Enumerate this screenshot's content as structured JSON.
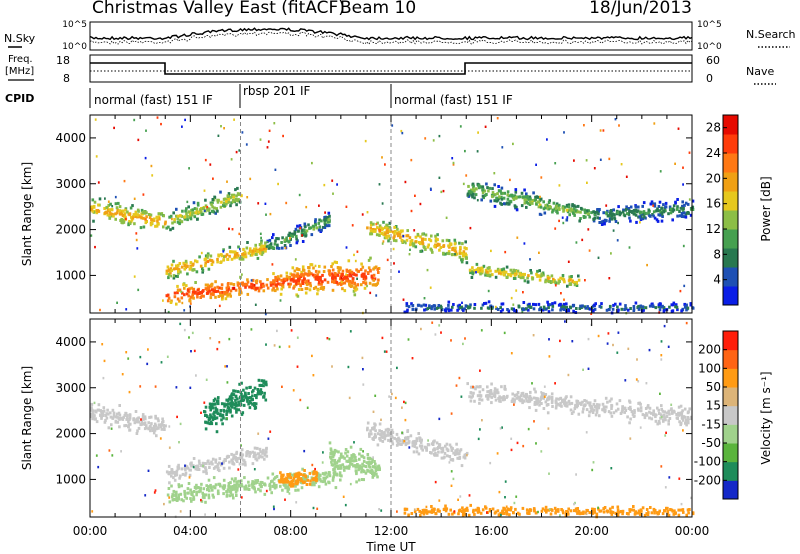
{
  "header": {
    "title": "Christmas Valley East (fitACF)",
    "beam": "Beam 10",
    "date": "18/Jun/2013"
  },
  "nsky_panel": {
    "left_label": "N.Sky",
    "right_label": "N.Search",
    "yticks_left": [
      "10^5",
      "10^0"
    ],
    "yticks_right": [
      "10^5",
      "10^0"
    ]
  },
  "freq_panel": {
    "left_label_1": "Freq.",
    "left_label_2": "[MHz]",
    "right_label": "Nave",
    "yticks_left": [
      "18",
      "8"
    ],
    "yticks_right": [
      "60",
      "0"
    ]
  },
  "cpid": {
    "label": "CPID",
    "segments": [
      {
        "text": "normal (fast) 151 IF",
        "start_hr": 0
      },
      {
        "text": "rbsp 201 IF",
        "start_hr": 6
      },
      {
        "text": "normal (fast) 151 IF",
        "start_hr": 12
      }
    ]
  },
  "chart_data": [
    {
      "type": "heatmap",
      "name": "power",
      "ylabel": "Slant Range [km]",
      "ylim": [
        180,
        4500
      ],
      "yticks": [
        1000,
        2000,
        3000,
        4000
      ],
      "xlim": [
        0,
        24
      ],
      "colorbar": {
        "label": "Power [dB]",
        "ticks": [
          4,
          8,
          12,
          16,
          20,
          24,
          28
        ],
        "range": [
          0,
          30
        ],
        "colors": [
          "#0a1ee6",
          "#1e50b4",
          "#287850",
          "#46a050",
          "#8cbe46",
          "#e6c81e",
          "#f0a014",
          "#ff7814",
          "#ff3c0a",
          "#e60a00"
        ]
      },
      "bands": [
        {
          "start_hr": 0.0,
          "end_hr": 3.0,
          "range_start_km": 2450,
          "range_end_km": 2150,
          "width_km": 300,
          "power_db": 20
        },
        {
          "start_hr": 3.0,
          "end_hr": 6.0,
          "range_start_km": 2150,
          "range_end_km": 2750,
          "width_km": 280,
          "power_db": 16
        },
        {
          "start_hr": 3.0,
          "end_hr": 7.0,
          "range_start_km": 1100,
          "range_end_km": 1600,
          "width_km": 250,
          "power_db": 20
        },
        {
          "start_hr": 7.0,
          "end_hr": 9.5,
          "range_start_km": 1600,
          "range_end_km": 2200,
          "width_km": 260,
          "power_db": 12
        },
        {
          "start_hr": 3.0,
          "end_hr": 8.5,
          "range_start_km": 550,
          "range_end_km": 900,
          "width_km": 300,
          "power_db": 26
        },
        {
          "start_hr": 8.0,
          "end_hr": 11.5,
          "range_start_km": 900,
          "range_end_km": 1000,
          "width_km": 450,
          "power_db": 26
        },
        {
          "start_hr": 11.0,
          "end_hr": 15.0,
          "range_start_km": 2050,
          "range_end_km": 1500,
          "width_km": 300,
          "power_db": 20
        },
        {
          "start_hr": 15.0,
          "end_hr": 20.0,
          "range_start_km": 2900,
          "range_end_km": 2300,
          "width_km": 300,
          "power_db": 14
        },
        {
          "start_hr": 20.0,
          "end_hr": 24.0,
          "range_start_km": 2300,
          "range_end_km": 2450,
          "width_km": 300,
          "power_db": 10
        },
        {
          "start_hr": 15.0,
          "end_hr": 19.5,
          "range_start_km": 1150,
          "range_end_km": 850,
          "width_km": 200,
          "power_db": 18
        },
        {
          "start_hr": 12.5,
          "end_hr": 24.0,
          "range_start_km": 300,
          "range_end_km": 300,
          "width_km": 150,
          "power_db": 8
        }
      ]
    },
    {
      "type": "heatmap",
      "name": "velocity",
      "ylabel": "Slant Range [km]",
      "xlabel": "Time UT",
      "ylim": [
        180,
        4500
      ],
      "yticks": [
        1000,
        2000,
        3000,
        4000
      ],
      "xlim": [
        0,
        24
      ],
      "xticks": [
        "00:00",
        "04:00",
        "08:00",
        "12:00",
        "16:00",
        "20:00",
        "00:00"
      ],
      "colorbar": {
        "label": "Velocity [m s⁻¹]",
        "ticks": [
          200,
          100,
          50,
          15,
          -15,
          -50,
          -100,
          -200
        ],
        "colors": [
          "#1428c8",
          "#1e8c5a",
          "#5ab43c",
          "#a0d28c",
          "#c8c8c8",
          "#dcb478",
          "#ff9b14",
          "#ff6414",
          "#ff1e0a"
        ]
      },
      "bands": [
        {
          "start_hr": 0.0,
          "end_hr": 3.0,
          "range_start_km": 2450,
          "range_end_km": 2150,
          "width_km": 300,
          "velocity": 0
        },
        {
          "start_hr": 4.5,
          "end_hr": 7.0,
          "range_start_km": 2350,
          "range_end_km": 3000,
          "width_km": 500,
          "velocity": 180
        },
        {
          "start_hr": 3.0,
          "end_hr": 7.0,
          "range_start_km": 1100,
          "range_end_km": 1600,
          "width_km": 250,
          "velocity": 0
        },
        {
          "start_hr": 3.0,
          "end_hr": 10.0,
          "range_start_km": 650,
          "range_end_km": 1100,
          "width_km": 300,
          "velocity": 40
        },
        {
          "start_hr": 7.5,
          "end_hr": 9.0,
          "range_start_km": 1000,
          "range_end_km": 1000,
          "width_km": 250,
          "velocity": -60
        },
        {
          "start_hr": 9.5,
          "end_hr": 11.5,
          "range_start_km": 1500,
          "range_end_km": 1200,
          "width_km": 450,
          "velocity": 40
        },
        {
          "start_hr": 11.0,
          "end_hr": 15.0,
          "range_start_km": 2050,
          "range_end_km": 1500,
          "width_km": 300,
          "velocity": 0
        },
        {
          "start_hr": 15.0,
          "end_hr": 24.0,
          "range_start_km": 2900,
          "range_end_km": 2350,
          "width_km": 300,
          "velocity": 0
        },
        {
          "start_hr": 12.5,
          "end_hr": 24.0,
          "range_start_km": 300,
          "range_end_km": 300,
          "width_km": 150,
          "velocity": -60
        }
      ]
    }
  ]
}
